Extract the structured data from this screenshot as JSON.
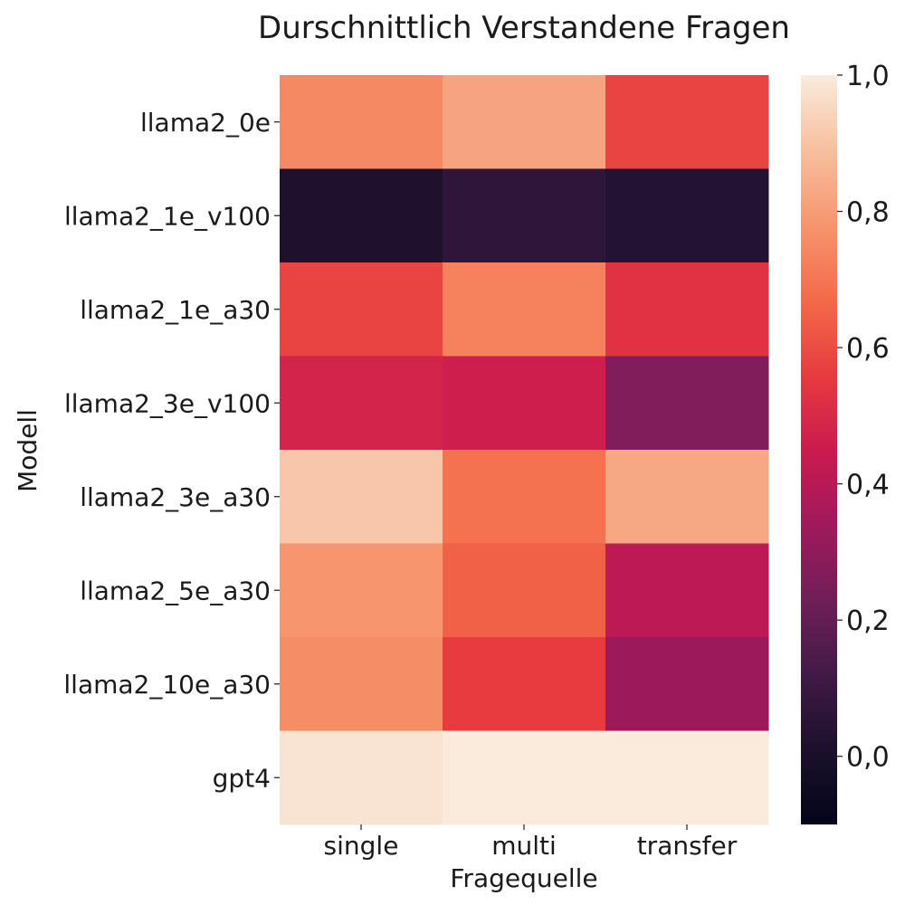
{
  "chart_data": {
    "type": "heatmap",
    "title": "Durschnittlich Verstandene Fragen",
    "xlabel": "Fragequelle",
    "ylabel": "Modell",
    "x_categories": [
      "single",
      "multi",
      "transfer"
    ],
    "y_categories": [
      "llama2_0e",
      "llama2_1e_v100",
      "llama2_1e_a30",
      "llama2_3e_v100",
      "llama2_3e_a30",
      "llama2_5e_a30",
      "llama2_10e_a30",
      "gpt4"
    ],
    "values": [
      [
        0.75,
        0.82,
        0.58
      ],
      [
        0.02,
        0.07,
        0.03
      ],
      [
        0.58,
        0.73,
        0.53
      ],
      [
        0.48,
        0.46,
        0.27
      ],
      [
        0.91,
        0.69,
        0.83
      ],
      [
        0.78,
        0.65,
        0.41
      ],
      [
        0.76,
        0.56,
        0.33
      ],
      [
        0.98,
        1.0,
        1.0
      ]
    ],
    "colorbar": {
      "range": [
        -0.1,
        1.0
      ],
      "ticks": [
        0.0,
        0.2,
        0.4,
        0.6,
        0.8,
        1.0
      ],
      "tick_labels": [
        "0,0",
        "0,2",
        "0,4",
        "0,6",
        "0,8",
        "1,0"
      ],
      "colormap": "rocket"
    },
    "grid": false
  }
}
